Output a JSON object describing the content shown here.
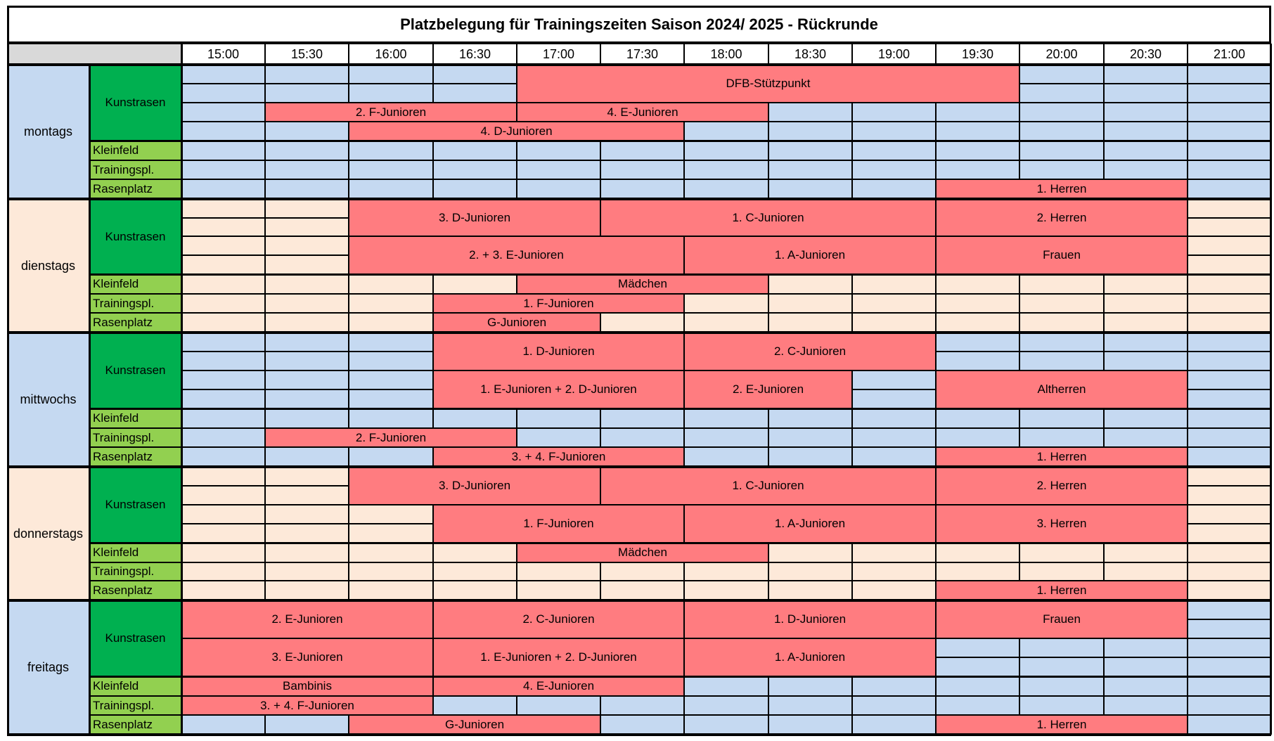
{
  "title": "Platzbelegung für Trainingszeiten Saison 2024/ 2025 - Rückrunde",
  "times": [
    "15:00",
    "15:30",
    "16:00",
    "16:30",
    "17:00",
    "17:30",
    "18:00",
    "18:30",
    "19:00",
    "19:30",
    "20:00",
    "20:30",
    "21:00"
  ],
  "fields": {
    "kunstrasen": "Kunstrasen",
    "kleinfeld": "Kleinfeld",
    "trainingspl": "Trainingspl.",
    "rasenplatz": "Rasenplatz"
  },
  "colors": {
    "reserved": "#ff7c80",
    "free_odd_day": "#c5d9f1",
    "free_even_day": "#fde9d9",
    "kunstrasen_label": "#00b050",
    "small_field_label": "#92d050",
    "header_corner": "#d9d9d9"
  },
  "days": [
    {
      "name": "montags",
      "color": "#c5d9f1",
      "bookings": [
        {
          "row": 0,
          "start": 4,
          "span": 6,
          "rows": 2,
          "label": "DFB-Stützpunkt"
        },
        {
          "row": 2,
          "start": 1,
          "span": 3,
          "rows": 1,
          "label": "2. F-Junioren"
        },
        {
          "row": 2,
          "start": 4,
          "span": 3,
          "rows": 1,
          "label": "4. E-Junioren"
        },
        {
          "row": 3,
          "start": 2,
          "span": 4,
          "rows": 1,
          "label": "4. D-Junioren"
        },
        {
          "row": 6,
          "start": 9,
          "span": 3,
          "rows": 1,
          "label": "1. Herren"
        }
      ]
    },
    {
      "name": "dienstags",
      "color": "#fde9d9",
      "bookings": [
        {
          "row": 0,
          "start": 2,
          "span": 3,
          "rows": 2,
          "label": "3. D-Junioren"
        },
        {
          "row": 0,
          "start": 5,
          "span": 4,
          "rows": 2,
          "label": "1. C-Junioren"
        },
        {
          "row": 0,
          "start": 9,
          "span": 3,
          "rows": 2,
          "label": "2. Herren"
        },
        {
          "row": 2,
          "start": 2,
          "span": 4,
          "rows": 2,
          "label": "2. + 3. E-Junioren"
        },
        {
          "row": 2,
          "start": 6,
          "span": 3,
          "rows": 2,
          "label": "1. A-Junioren"
        },
        {
          "row": 2,
          "start": 9,
          "span": 3,
          "rows": 2,
          "label": "Frauen"
        },
        {
          "row": 4,
          "start": 4,
          "span": 3,
          "rows": 1,
          "label": "Mädchen"
        },
        {
          "row": 5,
          "start": 3,
          "span": 3,
          "rows": 1,
          "label": "1. F-Junioren"
        },
        {
          "row": 6,
          "start": 3,
          "span": 2,
          "rows": 1,
          "label": "G-Junioren"
        }
      ]
    },
    {
      "name": "mittwochs",
      "color": "#c5d9f1",
      "bookings": [
        {
          "row": 0,
          "start": 3,
          "span": 3,
          "rows": 2,
          "label": "1. D-Junioren"
        },
        {
          "row": 0,
          "start": 6,
          "span": 3,
          "rows": 2,
          "label": "2. C-Junioren"
        },
        {
          "row": 2,
          "start": 3,
          "span": 3,
          "rows": 2,
          "label": "1. E-Junioren + 2. D-Junioren"
        },
        {
          "row": 2,
          "start": 6,
          "span": 2,
          "rows": 2,
          "label": "2. E-Junioren"
        },
        {
          "row": 2,
          "start": 9,
          "span": 3,
          "rows": 2,
          "label": "Altherren"
        },
        {
          "row": 5,
          "start": 1,
          "span": 3,
          "rows": 1,
          "label": "2. F-Junioren"
        },
        {
          "row": 6,
          "start": 3,
          "span": 3,
          "rows": 1,
          "label": "3. + 4. F-Junioren"
        },
        {
          "row": 6,
          "start": 9,
          "span": 3,
          "rows": 1,
          "label": "1. Herren"
        }
      ]
    },
    {
      "name": "donnerstags",
      "color": "#fde9d9",
      "bookings": [
        {
          "row": 0,
          "start": 2,
          "span": 3,
          "rows": 2,
          "label": "3. D-Junioren"
        },
        {
          "row": 0,
          "start": 5,
          "span": 4,
          "rows": 2,
          "label": "1. C-Junioren"
        },
        {
          "row": 0,
          "start": 9,
          "span": 3,
          "rows": 2,
          "label": "2. Herren"
        },
        {
          "row": 2,
          "start": 3,
          "span": 3,
          "rows": 2,
          "label": "1. F-Junioren"
        },
        {
          "row": 2,
          "start": 6,
          "span": 3,
          "rows": 2,
          "label": "1. A-Junioren"
        },
        {
          "row": 2,
          "start": 9,
          "span": 3,
          "rows": 2,
          "label": "3. Herren"
        },
        {
          "row": 4,
          "start": 4,
          "span": 3,
          "rows": 1,
          "label": "Mädchen"
        },
        {
          "row": 6,
          "start": 9,
          "span": 3,
          "rows": 1,
          "label": "1. Herren"
        }
      ]
    },
    {
      "name": "freitags",
      "color": "#c5d9f1",
      "bookings": [
        {
          "row": 0,
          "start": 0,
          "span": 3,
          "rows": 2,
          "label": "2. E-Junioren"
        },
        {
          "row": 0,
          "start": 3,
          "span": 3,
          "rows": 2,
          "label": "2. C-Junioren"
        },
        {
          "row": 0,
          "start": 6,
          "span": 3,
          "rows": 2,
          "label": "1. D-Junioren"
        },
        {
          "row": 0,
          "start": 9,
          "span": 3,
          "rows": 2,
          "label": "Frauen"
        },
        {
          "row": 2,
          "start": 0,
          "span": 3,
          "rows": 2,
          "label": "3. E-Junioren"
        },
        {
          "row": 2,
          "start": 3,
          "span": 3,
          "rows": 2,
          "label": "1. E-Junioren + 2. D-Junioren"
        },
        {
          "row": 2,
          "start": 6,
          "span": 3,
          "rows": 2,
          "label": "1. A-Junioren"
        },
        {
          "row": 4,
          "start": 0,
          "span": 3,
          "rows": 1,
          "label": "Bambinis"
        },
        {
          "row": 4,
          "start": 3,
          "span": 3,
          "rows": 1,
          "label": "4. E-Junioren"
        },
        {
          "row": 5,
          "start": 0,
          "span": 3,
          "rows": 1,
          "label": "3. + 4. F-Junioren"
        },
        {
          "row": 6,
          "start": 2,
          "span": 3,
          "rows": 1,
          "label": "G-Junioren"
        },
        {
          "row": 6,
          "start": 9,
          "span": 3,
          "rows": 1,
          "label": "1. Herren"
        }
      ]
    }
  ]
}
